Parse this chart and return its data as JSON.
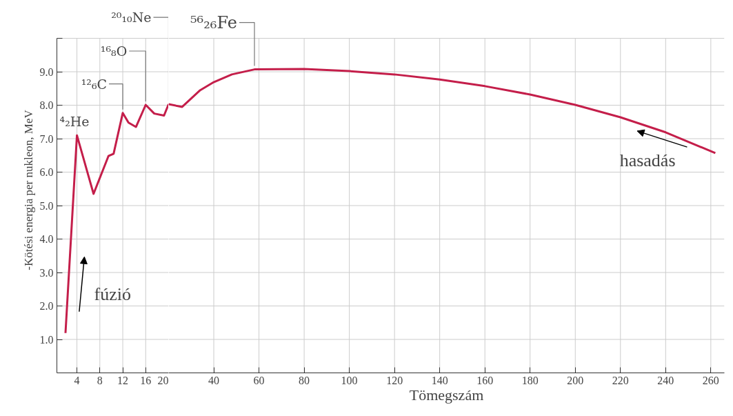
{
  "chart_data": [
    {
      "type": "line",
      "ylabel": "-Kötési energia per nukleon, MeV",
      "x": [
        2,
        4,
        6.9,
        9.5,
        10.4,
        12,
        13,
        14.3,
        16,
        17.5,
        19.2,
        20
      ],
      "series": [
        {
          "color": "#c41e4a",
          "values": [
            1.19,
            7.1,
            5.35,
            6.48,
            6.55,
            7.77,
            7.48,
            7.35,
            8.01,
            7.75,
            7.69,
            8.03
          ]
        }
      ],
      "xlim": [
        0.5,
        20
      ],
      "ylim": [
        0,
        10
      ],
      "xticks": [
        4,
        8,
        12,
        16,
        20
      ],
      "yticks": [
        {
          "value": 1,
          "label": "1.0"
        },
        {
          "value": 2,
          "label": "2.0"
        },
        {
          "value": 3,
          "label": "3.0"
        },
        {
          "value": 4,
          "label": "4.0"
        },
        {
          "value": 5,
          "label": "5.0"
        },
        {
          "value": 6,
          "label": "6.0"
        },
        {
          "value": 7,
          "label": "7.0"
        },
        {
          "value": 8,
          "label": "8.0"
        },
        {
          "value": 9,
          "label": "9.0"
        },
        {
          "value": 10,
          "label": null
        }
      ],
      "grid": true,
      "marker": "none",
      "line_style": "solid",
      "annotations": [
        {
          "text": "⁴₂He",
          "x": 4,
          "y": 7.1
        },
        {
          "text": "¹²₆C",
          "x": 12,
          "y": 7.77
        },
        {
          "text": "¹⁶₈O",
          "x": 16,
          "y": 8.01
        },
        {
          "text": "²⁰₁₀Ne",
          "x": 20,
          "y": 8.03
        },
        "fúzió"
      ]
    },
    {
      "type": "line",
      "xlabel": "Tömegszám",
      "x": [
        20,
        26,
        34,
        40,
        48,
        58,
        80,
        100,
        120,
        140,
        160,
        180,
        200,
        220,
        240,
        262
      ],
      "series": [
        {
          "color": "#c41e4a",
          "values": [
            8.03,
            7.95,
            8.45,
            8.69,
            8.92,
            9.07,
            9.08,
            9.02,
            8.92,
            8.77,
            8.57,
            8.32,
            8.01,
            7.64,
            7.19,
            6.57
          ]
        }
      ],
      "xlim": [
        20,
        266
      ],
      "ylim": [
        0,
        10
      ],
      "xticks": [
        40,
        60,
        80,
        100,
        120,
        140,
        160,
        180,
        200,
        220,
        240,
        260
      ],
      "yticks": [
        1,
        2,
        3,
        4,
        5,
        6,
        7,
        8,
        9,
        10
      ],
      "tick_labels": "x",
      "grid": true,
      "marker": "none",
      "line_style": "solid",
      "annotations": [
        {
          "text": "⁵⁶₂₆Fe",
          "x": 58,
          "y": 9.07
        },
        "hasadás"
      ]
    }
  ]
}
